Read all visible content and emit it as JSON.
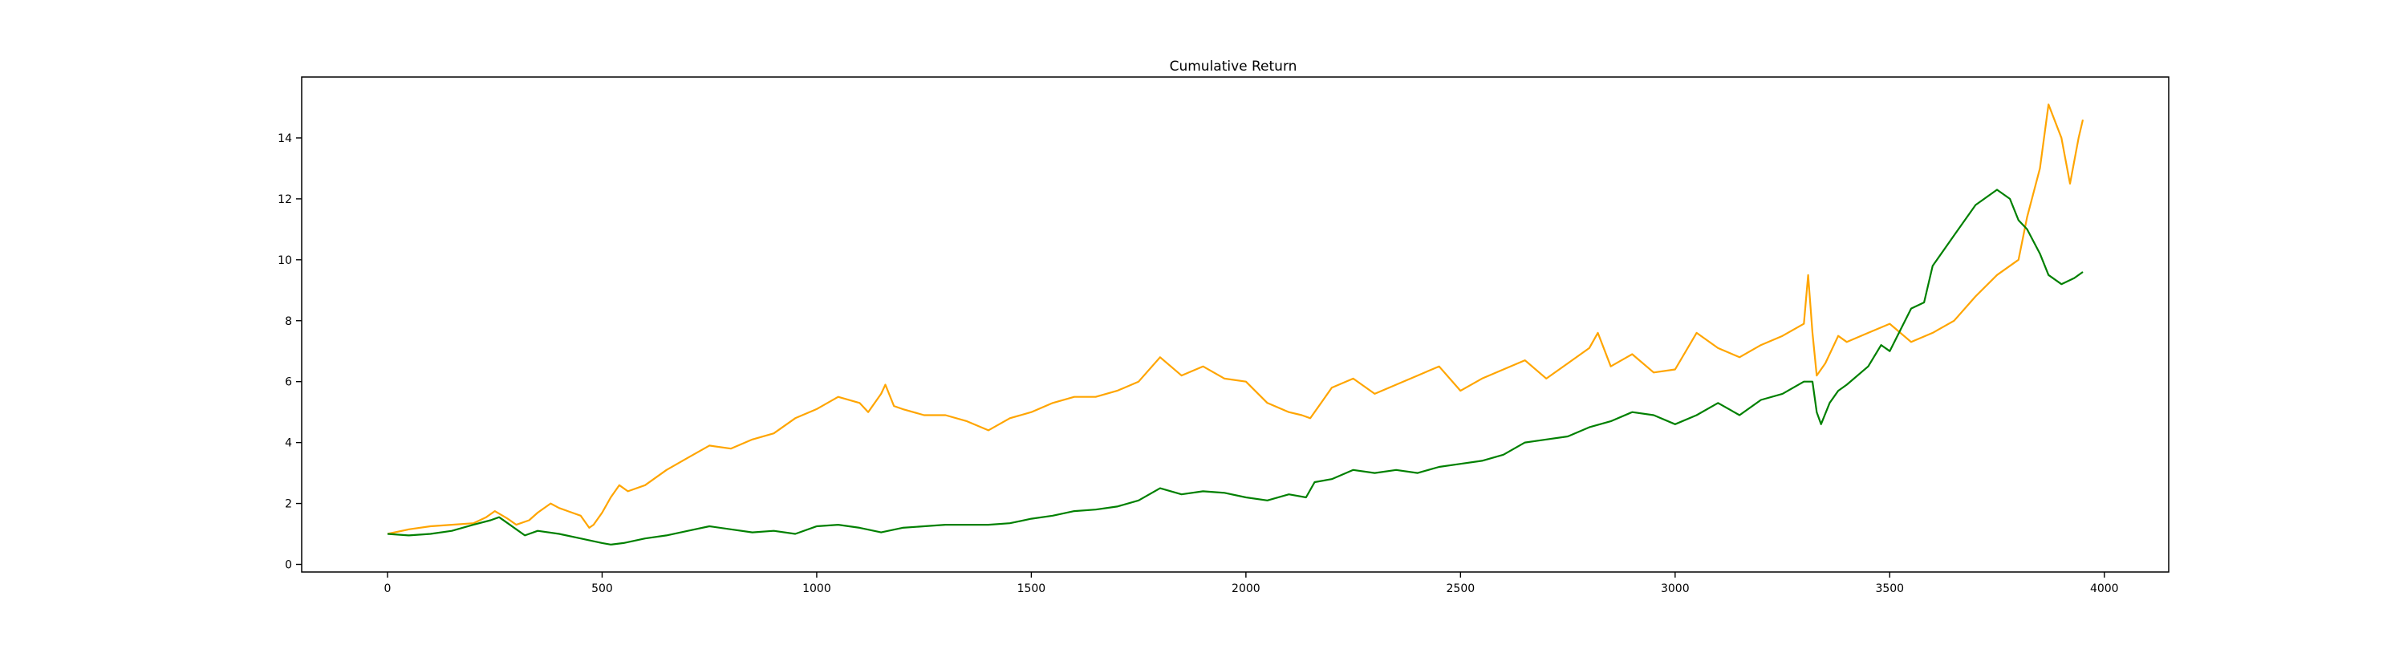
{
  "chart_data": {
    "type": "line",
    "title": "Cumulative Return",
    "xlabel": "",
    "ylabel": "",
    "xlim": [
      -200,
      4150
    ],
    "ylim": [
      -0.25,
      16.0
    ],
    "x_ticks": [
      0,
      500,
      1000,
      1500,
      2000,
      2500,
      3000,
      3500,
      4000
    ],
    "y_ticks": [
      0,
      2,
      4,
      6,
      8,
      10,
      12,
      14
    ],
    "grid": false,
    "colors": {
      "series_orange": "#FFA500",
      "series_green": "#008000"
    },
    "series": [
      {
        "color": "#FFA500",
        "x": [
          0,
          50,
          100,
          150,
          200,
          230,
          250,
          280,
          300,
          330,
          350,
          380,
          400,
          420,
          450,
          470,
          480,
          500,
          520,
          540,
          560,
          600,
          650,
          700,
          750,
          800,
          850,
          900,
          950,
          1000,
          1050,
          1100,
          1120,
          1150,
          1160,
          1180,
          1200,
          1250,
          1300,
          1350,
          1400,
          1450,
          1500,
          1550,
          1600,
          1650,
          1700,
          1750,
          1800,
          1850,
          1900,
          1950,
          2000,
          2050,
          2100,
          2130,
          2150,
          2180,
          2200,
          2250,
          2300,
          2350,
          2400,
          2450,
          2500,
          2550,
          2600,
          2650,
          2700,
          2750,
          2800,
          2820,
          2850,
          2900,
          2950,
          3000,
          3050,
          3100,
          3150,
          3200,
          3250,
          3300,
          3310,
          3320,
          3330,
          3350,
          3380,
          3400,
          3450,
          3500,
          3550,
          3600,
          3650,
          3700,
          3750,
          3800,
          3820,
          3850,
          3870,
          3900,
          3920,
          3940,
          3950
        ],
        "values": [
          1.0,
          1.15,
          1.25,
          1.3,
          1.35,
          1.55,
          1.75,
          1.5,
          1.3,
          1.45,
          1.7,
          2.0,
          1.85,
          1.75,
          1.6,
          1.2,
          1.3,
          1.7,
          2.2,
          2.6,
          2.4,
          2.6,
          3.1,
          3.5,
          3.9,
          3.8,
          4.1,
          4.3,
          4.8,
          5.1,
          5.5,
          5.3,
          5.0,
          5.6,
          5.9,
          5.2,
          5.1,
          4.9,
          4.9,
          4.7,
          4.4,
          4.8,
          5.0,
          5.3,
          5.5,
          5.5,
          5.7,
          6.0,
          6.8,
          6.2,
          6.5,
          6.1,
          6.0,
          5.3,
          5.0,
          4.9,
          4.8,
          5.4,
          5.8,
          6.1,
          5.6,
          5.9,
          6.2,
          6.5,
          5.7,
          6.1,
          6.4,
          6.7,
          6.1,
          6.6,
          7.1,
          7.6,
          6.5,
          6.9,
          6.3,
          6.4,
          7.6,
          7.1,
          6.8,
          7.2,
          7.5,
          7.9,
          9.5,
          7.6,
          6.2,
          6.6,
          7.5,
          7.3,
          7.6,
          7.9,
          7.3,
          7.6,
          8.0,
          8.8,
          9.5,
          10.0,
          11.4,
          13.0,
          15.1,
          14.0,
          12.5,
          14.0,
          14.6
        ]
      },
      {
        "color": "#008000",
        "x": [
          0,
          50,
          100,
          150,
          200,
          240,
          260,
          280,
          300,
          320,
          350,
          400,
          450,
          500,
          520,
          550,
          600,
          650,
          700,
          750,
          800,
          850,
          900,
          950,
          1000,
          1050,
          1100,
          1150,
          1200,
          1250,
          1300,
          1350,
          1400,
          1450,
          1500,
          1550,
          1600,
          1650,
          1700,
          1750,
          1800,
          1850,
          1900,
          1950,
          2000,
          2050,
          2100,
          2140,
          2160,
          2200,
          2250,
          2300,
          2350,
          2400,
          2450,
          2500,
          2550,
          2600,
          2650,
          2700,
          2750,
          2800,
          2850,
          2900,
          2950,
          3000,
          3050,
          3100,
          3150,
          3200,
          3250,
          3300,
          3320,
          3330,
          3340,
          3360,
          3380,
          3400,
          3450,
          3480,
          3500,
          3550,
          3580,
          3600,
          3650,
          3700,
          3750,
          3780,
          3800,
          3820,
          3850,
          3870,
          3900,
          3930,
          3950
        ],
        "values": [
          1.0,
          0.95,
          1.0,
          1.1,
          1.3,
          1.45,
          1.55,
          1.35,
          1.15,
          0.95,
          1.1,
          1.0,
          0.85,
          0.7,
          0.65,
          0.7,
          0.85,
          0.95,
          1.1,
          1.25,
          1.15,
          1.05,
          1.1,
          1.0,
          1.25,
          1.3,
          1.2,
          1.05,
          1.2,
          1.25,
          1.3,
          1.3,
          1.3,
          1.35,
          1.5,
          1.6,
          1.75,
          1.8,
          1.9,
          2.1,
          2.5,
          2.3,
          2.4,
          2.35,
          2.2,
          2.1,
          2.3,
          2.2,
          2.7,
          2.8,
          3.1,
          3.0,
          3.1,
          3.0,
          3.2,
          3.3,
          3.4,
          3.6,
          4.0,
          4.1,
          4.2,
          4.5,
          4.7,
          5.0,
          4.9,
          4.6,
          4.9,
          5.3,
          4.9,
          5.4,
          5.6,
          6.0,
          6.0,
          5.0,
          4.6,
          5.3,
          5.7,
          5.9,
          6.5,
          7.2,
          7.0,
          8.4,
          8.6,
          9.8,
          10.8,
          11.8,
          12.3,
          12.0,
          11.3,
          11.0,
          10.2,
          9.5,
          9.2,
          9.4,
          9.6
        ]
      }
    ]
  }
}
